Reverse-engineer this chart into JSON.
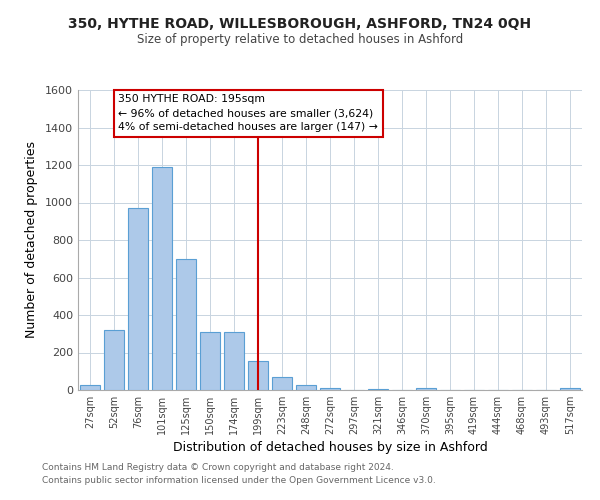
{
  "title": "350, HYTHE ROAD, WILLESBOROUGH, ASHFORD, TN24 0QH",
  "subtitle": "Size of property relative to detached houses in Ashford",
  "xlabel": "Distribution of detached houses by size in Ashford",
  "ylabel": "Number of detached properties",
  "bar_labels": [
    "27sqm",
    "52sqm",
    "76sqm",
    "101sqm",
    "125sqm",
    "150sqm",
    "174sqm",
    "199sqm",
    "223sqm",
    "248sqm",
    "272sqm",
    "297sqm",
    "321sqm",
    "346sqm",
    "370sqm",
    "395sqm",
    "419sqm",
    "444sqm",
    "468sqm",
    "493sqm",
    "517sqm"
  ],
  "bar_values": [
    25,
    320,
    970,
    1190,
    700,
    310,
    310,
    155,
    70,
    25,
    10,
    0,
    5,
    0,
    10,
    0,
    0,
    0,
    0,
    0,
    10
  ],
  "bar_color": "#adc9e9",
  "bar_edge_color": "#5a9fd4",
  "highlight_index": 7,
  "vline_color": "#cc0000",
  "ylim": [
    0,
    1600
  ],
  "yticks": [
    0,
    200,
    400,
    600,
    800,
    1000,
    1200,
    1400,
    1600
  ],
  "annotation_title": "350 HYTHE ROAD: 195sqm",
  "annotation_line1": "← 96% of detached houses are smaller (3,624)",
  "annotation_line2": "4% of semi-detached houses are larger (147) →",
  "annotation_box_color": "#ffffff",
  "annotation_box_edge": "#cc0000",
  "footer1": "Contains HM Land Registry data © Crown copyright and database right 2024.",
  "footer2": "Contains public sector information licensed under the Open Government Licence v3.0.",
  "bg_color": "#ffffff",
  "grid_color": "#c8d4e0"
}
